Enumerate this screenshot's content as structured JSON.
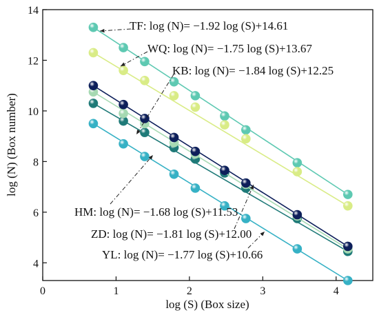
{
  "chart_data": {
    "type": "scatter",
    "xlabel": "log (S) (Box size)",
    "ylabel": "log (N) (Box number)",
    "xlim": [
      0,
      4.5
    ],
    "ylim": [
      3.3,
      14
    ],
    "x_ticks": [
      "0",
      "1",
      "2",
      "3",
      "4"
    ],
    "y_ticks": [
      "4",
      "6",
      "8",
      "10",
      "12",
      "14"
    ],
    "grid": false,
    "legend": "none",
    "x": [
      0.69,
      1.1,
      1.39,
      1.79,
      2.08,
      2.48,
      2.77,
      3.47,
      4.16
    ],
    "series": [
      {
        "key": "TF",
        "color": "#5ec9b2",
        "slope": -1.92,
        "intercept": 14.61,
        "values": [
          13.3,
          12.5,
          11.95,
          11.15,
          10.6,
          9.8,
          9.25,
          7.95,
          6.7
        ]
      },
      {
        "key": "WQ",
        "color": "#d9ec86",
        "slope": -1.75,
        "intercept": 13.67,
        "values": [
          12.3,
          11.6,
          11.2,
          10.6,
          10.15,
          9.45,
          8.9,
          7.6,
          6.25
        ]
      },
      {
        "key": "KB",
        "color": "#1f7a78",
        "slope": -1.84,
        "intercept": 12.25,
        "values": [
          10.3,
          9.6,
          9.15,
          8.55,
          8.1,
          7.55,
          6.95,
          5.75,
          4.45
        ]
      },
      {
        "key": "HM",
        "color": "#a6d9b2",
        "slope": -1.68,
        "intercept": 11.53,
        "values": [
          10.75,
          9.9,
          9.5,
          8.75,
          8.3,
          7.65,
          7.1,
          5.85,
          4.55
        ]
      },
      {
        "key": "ZD",
        "color": "#0d1f5a",
        "slope": -1.81,
        "intercept": 12.0,
        "values": [
          11.0,
          10.25,
          9.7,
          8.95,
          8.4,
          7.65,
          7.15,
          5.9,
          4.65
        ]
      },
      {
        "key": "YL",
        "color": "#36b1c5",
        "slope": -1.77,
        "intercept": 10.66,
        "values": [
          9.5,
          8.7,
          8.2,
          7.5,
          6.95,
          6.25,
          5.75,
          4.55,
          3.3
        ]
      }
    ],
    "annotations": [
      "TF: log (N)= −1.92 log (S)+14.61",
      "WQ: log (N)= −1.75 log (S)+13.67",
      "KB: log (N)= −1.84 log (S)+12.25",
      "HM: log (N)= −1.68 log (S)+11.53",
      "ZD: log (N)= −1.81 log (S)+12.00",
      "YL: log (N)= −1.77 log (S)+10.66"
    ]
  }
}
